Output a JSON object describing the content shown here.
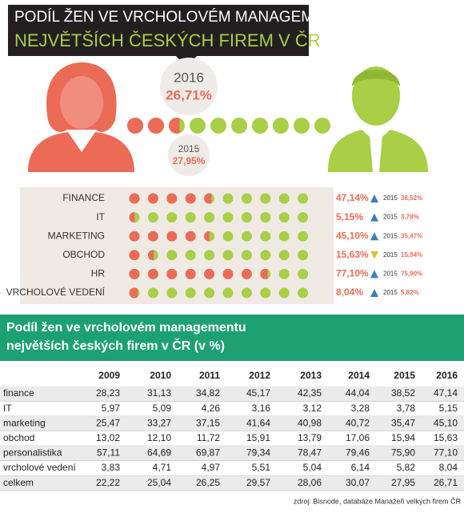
{
  "header": {
    "title_line1": "PODÍL ŽEN VE VRCHOLOVÉM MANAGEMENTU",
    "title_line2": "NEJVĚTŠÍCH ČESKÝCH FIREM  V ČR"
  },
  "overall": {
    "year": "2016",
    "value": 26.71,
    "value_label": "26,71%",
    "prev_year": "2015",
    "prev_value_label": "27,95%"
  },
  "colors": {
    "women": "#ec6b57",
    "men": "#a9cf46"
  },
  "rows": [
    {
      "label": "FINANCE",
      "value": 47.14,
      "value_label": "47,14%",
      "trend": "up",
      "prev_year": "2015",
      "prev_label": "38,52%"
    },
    {
      "label": "IT",
      "value": 5.15,
      "value_label": "5,15%",
      "trend": "up",
      "prev_year": "2015",
      "prev_label": "3,78%"
    },
    {
      "label": "MARKETING",
      "value": 45.1,
      "value_label": "45,10%",
      "trend": "up",
      "prev_year": "2015",
      "prev_label": "35,47%"
    },
    {
      "label": "OBCHOD",
      "value": 15.63,
      "value_label": "15,63%",
      "trend": "down",
      "prev_year": "2015",
      "prev_label": "15,94%"
    },
    {
      "label": "HR",
      "value": 77.1,
      "value_label": "77,10%",
      "trend": "up",
      "prev_year": "2015",
      "prev_label": "75,90%"
    },
    {
      "label": "VRCHOLOVÉ VEDENÍ",
      "value": 8.04,
      "value_label": "8,04%",
      "trend": "up",
      "prev_year": "2015",
      "prev_label": "5,82%"
    }
  ],
  "table": {
    "title_line1": "Podíl žen ve vrcholovém managementu",
    "title_line2": "největších českých firem v ČR (v %)",
    "columns": [
      "2009",
      "2010",
      "2011",
      "2012",
      "2013",
      "2014",
      "2015",
      "2016"
    ],
    "rows": [
      [
        "finance",
        "28,23",
        "31,13",
        "34,82",
        "45,17",
        "42,35",
        "44,04",
        "38,52",
        "47,14"
      ],
      [
        "IT",
        "5,97",
        "5,09",
        "4,26",
        "3,16",
        "3,12",
        "3,28",
        "3,78",
        "5,15"
      ],
      [
        "marketing",
        "25,47",
        "33,27",
        "37,15",
        "41,64",
        "40,98",
        "40,72",
        "35,47",
        "45,10"
      ],
      [
        "obchod",
        "13,02",
        "12,10",
        "11,72",
        "15,91",
        "13,79",
        "17,06",
        "15,94",
        "15,63"
      ],
      [
        "personalistika",
        "57,11",
        "64,69",
        "69,87",
        "79,34",
        "78,47",
        "79,46",
        "75,90",
        "77,10"
      ],
      [
        "vrcholové vedení",
        "3,83",
        "4,71",
        "4,97",
        "5,51",
        "5,04",
        "6,14",
        "5,82",
        "8,04"
      ],
      [
        "celkem",
        "22,22",
        "25,04",
        "26,25",
        "29,57",
        "28,06",
        "30,07",
        "27,95",
        "26,71"
      ]
    ]
  },
  "source": "zdroj: Bisnode, databáze Manažeři velkých firem ČR"
}
